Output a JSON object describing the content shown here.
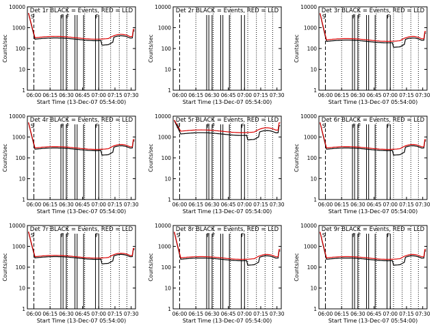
{
  "chart_data": {
    "type": "line",
    "ylabel": "Counts/sec",
    "xlabel": "Start Time (13-Dec-07 05:54:00)",
    "yscale": "log",
    "ylim": [
      1,
      10000
    ],
    "yticks": [
      "1",
      "10",
      "100",
      "1000",
      "10000"
    ],
    "xlim": [
      "05:54",
      "07:34"
    ],
    "xticks": [
      "06:00",
      "06:15",
      "06:30",
      "06:45",
      "07:00",
      "07:15",
      "07:30"
    ],
    "legend_colors": {
      "events": "#000000",
      "lld": "#dd0000"
    },
    "panels": [
      {
        "title": "Det 1r BLACK = Events, RED = LLD",
        "events_level": 280,
        "lld_level": 330,
        "has_data": true
      },
      {
        "title": "Det 2r BLACK = Events, RED = LLD",
        "has_data": false
      },
      {
        "title": "Det 3r BLACK = Events, RED = LLD",
        "events_level": 220,
        "lld_level": 260,
        "has_data": true
      },
      {
        "title": "Det 4r BLACK = Events, RED = LLD",
        "events_level": 260,
        "lld_level": 300,
        "has_data": true
      },
      {
        "title": "Det 5r BLACK = Events, RED = LLD",
        "events_level": 1400,
        "lld_level": 1900,
        "has_data": true
      },
      {
        "title": "Det 6r BLACK = Events, RED = LLD",
        "events_level": 260,
        "lld_level": 300,
        "has_data": true
      },
      {
        "title": "Det 7r BLACK = Events, RED = LLD",
        "events_level": 280,
        "lld_level": 320,
        "has_data": true
      },
      {
        "title": "Det 8r BLACK = Events, RED = LLD",
        "events_level": 240,
        "lld_level": 280,
        "has_data": true
      },
      {
        "title": "Det 9r BLACK = Events, RED = LLD",
        "events_level": 240,
        "lld_level": 280,
        "has_data": true
      }
    ]
  }
}
